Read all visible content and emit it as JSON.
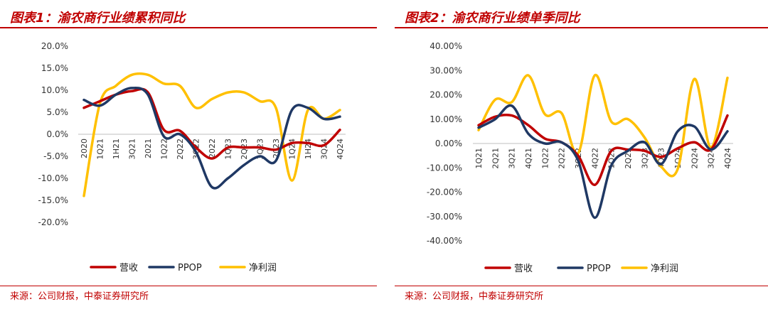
{
  "chart_data": [
    {
      "type": "line",
      "title": "图表1：渝农商行业绩累积同比",
      "source": "来源：公司财报，中泰证券研究所",
      "xlabel": "",
      "ylabel": "",
      "ylim": [
        -20,
        20
      ],
      "yticks": [
        20,
        15,
        10,
        5,
        0,
        -5,
        -10,
        -15,
        -20
      ],
      "ytick_labels": [
        "20.0%",
        "15.0%",
        "10.0%",
        "5.0%",
        "0.0%",
        "-5.0%",
        "-10.0%",
        "-15.0%",
        "-20.0%"
      ],
      "categories": [
        "2020",
        "1Q21",
        "1H21",
        "3Q21",
        "2021",
        "1Q22",
        "2Q22",
        "3Q22",
        "2022",
        "1Q23",
        "2Q23",
        "3Q23",
        "2023",
        "1Q24",
        "1H24",
        "3Q24",
        "4Q24"
      ],
      "series": [
        {
          "name": "营收",
          "color": "#c00000",
          "values": [
            6.0,
            7.5,
            9.0,
            9.8,
            9.5,
            1.0,
            0.8,
            -3.0,
            -5.5,
            -3.0,
            -3.0,
            -3.0,
            -3.5,
            -2.0,
            -2.0,
            -2.5,
            1.0
          ]
        },
        {
          "name": "PPOP",
          "color": "#1f3864",
          "values": [
            7.8,
            6.5,
            9.0,
            10.5,
            9.0,
            -0.5,
            0.0,
            -4.0,
            -12.0,
            -10.0,
            -7.0,
            -5.0,
            -6.0,
            5.5,
            6.0,
            3.5,
            4.0
          ]
        },
        {
          "name": "净利润",
          "color": "#ffc000",
          "values": [
            -14.0,
            7.0,
            11.0,
            13.5,
            13.5,
            11.5,
            11.0,
            6.0,
            8.0,
            9.5,
            9.5,
            7.5,
            6.0,
            -10.5,
            5.5,
            3.5,
            5.5
          ]
        }
      ]
    },
    {
      "type": "line",
      "title": "图表2：渝农商行业绩单季同比",
      "source": "来源：公司财报，中泰证券研究所",
      "xlabel": "",
      "ylabel": "",
      "ylim": [
        -40,
        40
      ],
      "yticks": [
        40,
        30,
        20,
        10,
        0,
        -10,
        -20,
        -30,
        -40
      ],
      "ytick_labels": [
        "40.00%",
        "30.00%",
        "20.00%",
        "10.00%",
        "0.00%",
        "-10.00%",
        "-20.00%",
        "-30.00%",
        "-40.00%"
      ],
      "categories": [
        "1Q21",
        "2Q21",
        "3Q21",
        "4Q21",
        "1Q22",
        "2Q22",
        "3Q22",
        "4Q22",
        "1Q23",
        "2Q23",
        "3Q23",
        "4Q23",
        "1Q24",
        "2Q24",
        "3Q24",
        "4Q24"
      ],
      "series": [
        {
          "name": "营收",
          "color": "#c00000",
          "values": [
            7.5,
            11.0,
            11.5,
            7.5,
            2.0,
            0.5,
            -5.0,
            -17.0,
            -3.0,
            -2.5,
            -3.0,
            -5.5,
            -2.0,
            0.5,
            -2.5,
            11.5
          ]
        },
        {
          "name": "PPOP",
          "color": "#1f3864",
          "values": [
            6.5,
            10.0,
            15.5,
            4.0,
            0.0,
            0.5,
            -7.0,
            -30.5,
            -9.0,
            -3.0,
            0.5,
            -8.5,
            5.0,
            7.0,
            -2.5,
            5.0
          ]
        },
        {
          "name": "净利润",
          "color": "#ffc000",
          "values": [
            5.5,
            18.0,
            17.0,
            28.0,
            12.0,
            12.5,
            -4.0,
            28.0,
            9.0,
            10.0,
            2.5,
            -9.5,
            -10.5,
            26.5,
            -1.5,
            27.0
          ]
        }
      ]
    }
  ]
}
